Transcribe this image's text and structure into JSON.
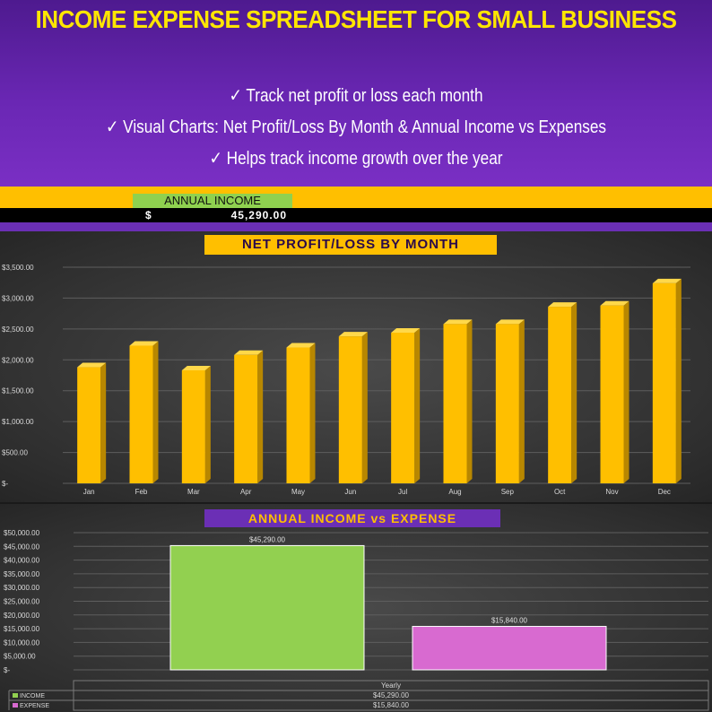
{
  "header": {
    "title": "INCOME EXPENSE SPREADSHEET FOR SMALL BUSINESS",
    "bullets": [
      "Track net profit or loss each month",
      "Visual Charts: Net Profit/Loss By Month & Annual Income vs Expenses",
      "Helps track income growth over the year"
    ],
    "check_glyph": "✓"
  },
  "summary": {
    "label": "ANNUAL INCOME",
    "currency": "$",
    "value": "45,290.00"
  },
  "colors": {
    "header_purple": "#6a27b4",
    "title_yellow": "#ffe600",
    "bar_gold": "#ffbf00",
    "income_green": "#92d050",
    "expense_pink": "#d86ad0"
  },
  "chart_data": [
    {
      "type": "bar",
      "title": "NET PROFIT/LOSS BY MONTH",
      "categories": [
        "Jan",
        "Feb",
        "Mar",
        "Apr",
        "May",
        "Jun",
        "Jul",
        "Aug",
        "Sep",
        "Oct",
        "Nov",
        "Dec"
      ],
      "values": [
        1880,
        2230,
        1830,
        2080,
        2200,
        2380,
        2440,
        2580,
        2580,
        2860,
        2880,
        3240
      ],
      "ylim": [
        0,
        3500
      ],
      "yticks": [
        0,
        500,
        1000,
        1500,
        2000,
        2500,
        3000,
        3500
      ],
      "ytick_labels": [
        "$-",
        "$500.00",
        "$1,000.00",
        "$1,500.00",
        "$2,000.00",
        "$2,500.00",
        "$3,000.00",
        "$3,500.00"
      ],
      "grid": true
    },
    {
      "type": "bar",
      "title": "ANNUAL INCOME vs EXPENSE",
      "categories": [
        "Yearly"
      ],
      "series": [
        {
          "name": "INCOME",
          "values": [
            45290
          ],
          "label": "$45,290.00",
          "color": "#92d050"
        },
        {
          "name": "EXPENSE",
          "values": [
            15840
          ],
          "label": "$15,840.00",
          "color": "#d86ad0"
        }
      ],
      "ylim": [
        0,
        50000
      ],
      "yticks": [
        0,
        5000,
        10000,
        15000,
        20000,
        25000,
        30000,
        35000,
        40000,
        45000,
        50000
      ],
      "ytick_labels": [
        "$-",
        "$5,000.00",
        "$10,000.00",
        "$15,000.00",
        "$20,000.00",
        "$25,000.00",
        "$30,000.00",
        "$35,000.00",
        "$40,000.00",
        "$45,000.00",
        "$50,000.00"
      ],
      "grid": true,
      "data_table": true
    }
  ]
}
